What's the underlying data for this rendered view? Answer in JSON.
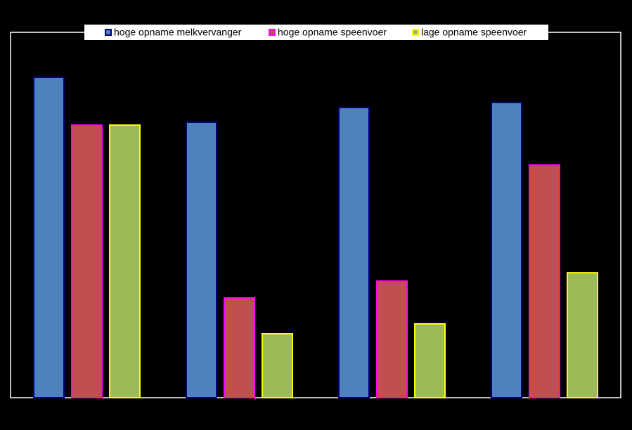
{
  "chart_data": {
    "type": "bar",
    "categories": [
      null,
      null,
      null,
      null
    ],
    "series": [
      {
        "name": "hoge opname melkvervanger",
        "color": "#4f81bd",
        "edge_color": "#000080",
        "values": [
          87.7,
          75.4,
          79.4,
          80.8
        ]
      },
      {
        "name": "hoge opname speenvoer",
        "color": "#c0504d",
        "edge_color": "#ff00ff",
        "values": [
          74.6,
          27.3,
          31.9,
          63.7
        ]
      },
      {
        "name": "lage opname speenvoer",
        "color": "#9bbb59",
        "edge_color": "#ffff00",
        "values": [
          74.6,
          17.5,
          20.2,
          34.2
        ]
      }
    ],
    "ylim": [
      0,
      100
    ],
    "legend": "top"
  }
}
